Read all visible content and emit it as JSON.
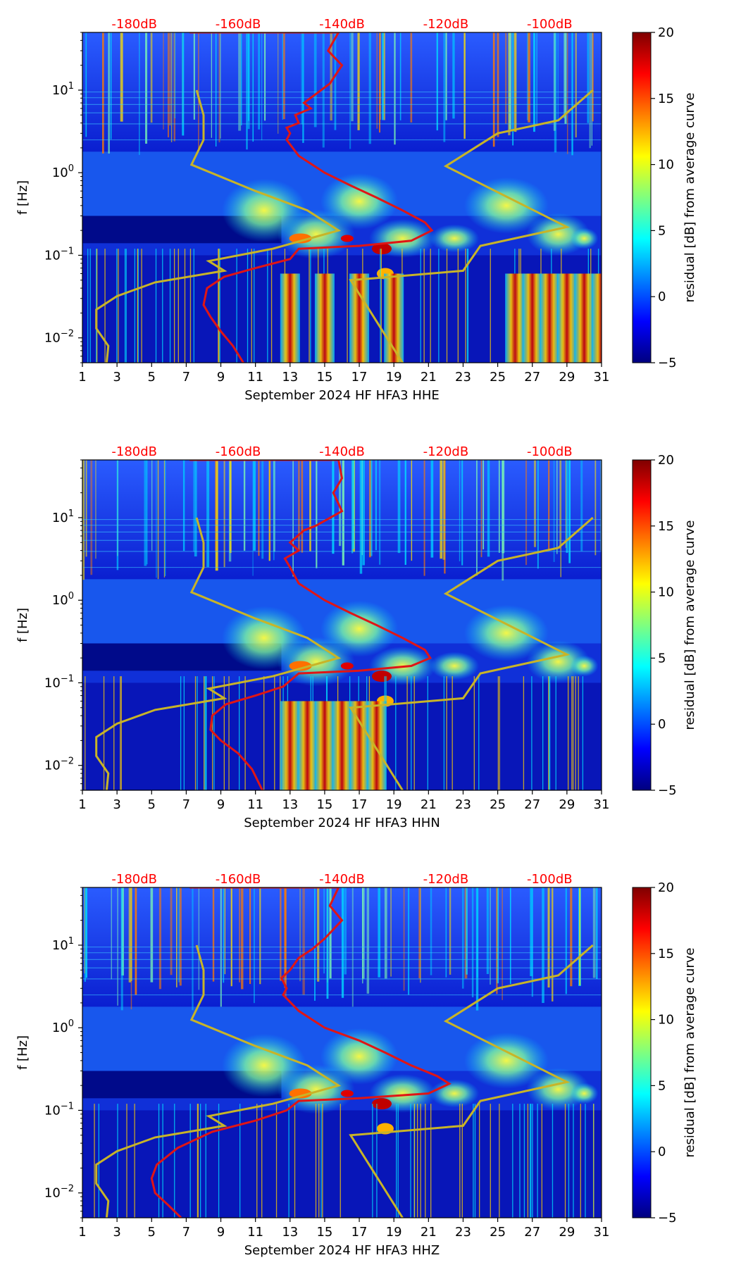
{
  "figure": {
    "month_label": "September 2024",
    "network": "HF",
    "station": "HFA3"
  },
  "colors": {
    "model_curve": "#c8b428",
    "median_curve": "#e01515",
    "top_axis_text": "#ff0000",
    "colormap": [
      "#00007f",
      "#0000ff",
      "#007fff",
      "#00ffff",
      "#7fff7f",
      "#ffff00",
      "#ff7f00",
      "#ff0000",
      "#7f0000"
    ]
  },
  "chart_data": [
    {
      "type": "heatmap",
      "channel": "HHE",
      "xlabel": "September 2024 HF HFA3  HHE",
      "ylabel": "f [Hz]",
      "x_range": [
        1,
        31
      ],
      "x_ticks": [
        "1",
        "3",
        "5",
        "7",
        "9",
        "11",
        "13",
        "15",
        "17",
        "19",
        "21",
        "23",
        "25",
        "27",
        "29",
        "31"
      ],
      "y_scale": "log",
      "y_range": [
        0.005,
        50
      ],
      "y_ticks": [
        {
          "value": 10,
          "base": "10",
          "exp": "1"
        },
        {
          "value": 1,
          "base": "10",
          "exp": "0"
        },
        {
          "value": 0.1,
          "base": "10",
          "exp": "−1"
        },
        {
          "value": 0.01,
          "base": "10",
          "exp": "−2"
        }
      ],
      "top_axis_labels": [
        "-180dB",
        "-160dB",
        "-140dB",
        "-120dB",
        "-100dB"
      ],
      "top_axis_positions": [
        4.0,
        10.0,
        16.0,
        22.0,
        28.0
      ],
      "colorbar": {
        "label": "residual [dB] from average curve",
        "range": [
          -5,
          20
        ],
        "ticks": [
          "20",
          "15",
          "10",
          "5",
          "0",
          "−5"
        ]
      },
      "median_curve": [
        [
          7.2,
          50
        ],
        [
          15.8,
          50
        ],
        [
          15.2,
          30
        ],
        [
          16,
          20
        ],
        [
          15.3,
          12
        ],
        [
          14.5,
          9
        ],
        [
          13.8,
          7
        ],
        [
          14.2,
          6
        ],
        [
          13.3,
          5
        ],
        [
          13.5,
          4
        ],
        [
          12.8,
          3.5
        ],
        [
          13,
          3
        ],
        [
          12.8,
          2.5
        ],
        [
          13.5,
          1.6
        ],
        [
          15,
          1
        ],
        [
          16.5,
          0.7
        ],
        [
          18,
          0.5
        ],
        [
          19.5,
          0.35
        ],
        [
          20.8,
          0.25
        ],
        [
          21.2,
          0.2
        ],
        [
          20,
          0.15
        ],
        [
          17,
          0.13
        ],
        [
          13.5,
          0.12
        ],
        [
          13,
          0.09
        ],
        [
          11,
          0.07
        ],
        [
          9.2,
          0.055
        ],
        [
          8.2,
          0.04
        ],
        [
          8,
          0.025
        ],
        [
          8.4,
          0.018
        ],
        [
          9,
          0.012
        ],
        [
          9.7,
          0.008
        ],
        [
          10.3,
          0.005
        ]
      ],
      "model_curve": [
        [
          7.6,
          10
        ],
        [
          8,
          5
        ],
        [
          8,
          2.5
        ],
        [
          7.3,
          1.25
        ],
        [
          11,
          0.6
        ],
        [
          14,
          0.35
        ],
        [
          15.8,
          0.2
        ],
        [
          12,
          0.12
        ],
        [
          8.3,
          0.085
        ],
        [
          9.2,
          0.065
        ],
        [
          5.2,
          0.047
        ],
        [
          3,
          0.032
        ],
        [
          1.8,
          0.022
        ],
        [
          1.8,
          0.013
        ],
        [
          2.5,
          0.008
        ],
        [
          2.4,
          0.005
        ]
      ],
      "model_curve_high": [
        [
          30.5,
          10
        ],
        [
          28.5,
          4.3
        ],
        [
          25,
          3
        ],
        [
          22,
          1.2
        ],
        [
          29,
          0.22
        ],
        [
          24,
          0.13
        ],
        [
          23,
          0.065
        ],
        [
          16.5,
          0.05
        ],
        [
          19.5,
          0.005
        ]
      ]
    },
    {
      "type": "heatmap",
      "channel": "HHN",
      "xlabel": "September 2024 HF HFA3  HHN",
      "ylabel": "f [Hz]",
      "x_range": [
        1,
        31
      ],
      "x_ticks": [
        "1",
        "3",
        "5",
        "7",
        "9",
        "11",
        "13",
        "15",
        "17",
        "19",
        "21",
        "23",
        "25",
        "27",
        "29",
        "31"
      ],
      "y_scale": "log",
      "y_range": [
        0.005,
        50
      ],
      "y_ticks": [
        {
          "value": 10,
          "base": "10",
          "exp": "1"
        },
        {
          "value": 1,
          "base": "10",
          "exp": "0"
        },
        {
          "value": 0.1,
          "base": "10",
          "exp": "−1"
        },
        {
          "value": 0.01,
          "base": "10",
          "exp": "−2"
        }
      ],
      "top_axis_labels": [
        "-180dB",
        "-160dB",
        "-140dB",
        "-120dB",
        "-100dB"
      ],
      "top_axis_positions": [
        4.0,
        10.0,
        16.0,
        22.0,
        28.0
      ],
      "colorbar": {
        "label": "residual [dB] from average curve",
        "range": [
          -5,
          20
        ],
        "ticks": [
          "20",
          "15",
          "10",
          "5",
          "0",
          "−5"
        ]
      },
      "median_curve": [
        [
          7.2,
          50
        ],
        [
          15.8,
          50
        ],
        [
          16,
          30
        ],
        [
          15.5,
          20
        ],
        [
          16,
          12
        ],
        [
          14.5,
          8
        ],
        [
          13.8,
          7
        ],
        [
          13,
          5
        ],
        [
          13.5,
          4
        ],
        [
          12.7,
          3.2
        ],
        [
          13,
          2.5
        ],
        [
          13.5,
          1.6
        ],
        [
          15,
          1
        ],
        [
          16.5,
          0.7
        ],
        [
          18,
          0.5
        ],
        [
          19.5,
          0.35
        ],
        [
          20.8,
          0.25
        ],
        [
          21.1,
          0.2
        ],
        [
          20,
          0.16
        ],
        [
          17,
          0.14
        ],
        [
          13.5,
          0.13
        ],
        [
          12.6,
          0.09
        ],
        [
          11,
          0.07
        ],
        [
          9.3,
          0.055
        ],
        [
          8.5,
          0.04
        ],
        [
          8.4,
          0.027
        ],
        [
          9,
          0.02
        ],
        [
          10,
          0.014
        ],
        [
          10.8,
          0.009
        ],
        [
          11.4,
          0.005
        ]
      ],
      "model_curve": [
        [
          7.6,
          10
        ],
        [
          8,
          5
        ],
        [
          8,
          2.5
        ],
        [
          7.3,
          1.25
        ],
        [
          11,
          0.6
        ],
        [
          14,
          0.35
        ],
        [
          15.8,
          0.2
        ],
        [
          12,
          0.12
        ],
        [
          8.3,
          0.085
        ],
        [
          9.2,
          0.065
        ],
        [
          5.2,
          0.047
        ],
        [
          3,
          0.032
        ],
        [
          1.8,
          0.022
        ],
        [
          1.8,
          0.013
        ],
        [
          2.5,
          0.008
        ],
        [
          2.4,
          0.005
        ]
      ],
      "model_curve_high": [
        [
          30.5,
          10
        ],
        [
          28.5,
          4.3
        ],
        [
          25,
          3
        ],
        [
          22,
          1.2
        ],
        [
          29,
          0.22
        ],
        [
          24,
          0.13
        ],
        [
          23,
          0.065
        ],
        [
          16.5,
          0.05
        ],
        [
          19.5,
          0.005
        ]
      ]
    },
    {
      "type": "heatmap",
      "channel": "HHZ",
      "xlabel": "September 2024 HF HFA3  HHZ",
      "ylabel": "f [Hz]",
      "x_range": [
        1,
        31
      ],
      "x_ticks": [
        "1",
        "3",
        "5",
        "7",
        "9",
        "11",
        "13",
        "15",
        "17",
        "19",
        "21",
        "23",
        "25",
        "27",
        "29",
        "31"
      ],
      "y_scale": "log",
      "y_range": [
        0.005,
        50
      ],
      "y_ticks": [
        {
          "value": 10,
          "base": "10",
          "exp": "1"
        },
        {
          "value": 1,
          "base": "10",
          "exp": "0"
        },
        {
          "value": 0.1,
          "base": "10",
          "exp": "−1"
        },
        {
          "value": 0.01,
          "base": "10",
          "exp": "−2"
        }
      ],
      "top_axis_labels": [
        "-180dB",
        "-160dB",
        "-140dB",
        "-120dB",
        "-100dB"
      ],
      "top_axis_positions": [
        4.0,
        10.0,
        16.0,
        22.0,
        28.0
      ],
      "colorbar": {
        "label": "residual [dB] from average curve",
        "range": [
          -5,
          20
        ],
        "ticks": [
          "20",
          "15",
          "10",
          "5",
          "0",
          "−5"
        ]
      },
      "median_curve": [
        [
          7.2,
          50
        ],
        [
          15.8,
          50
        ],
        [
          15.3,
          30
        ],
        [
          16,
          20
        ],
        [
          15,
          12
        ],
        [
          14.3,
          9
        ],
        [
          13.5,
          7
        ],
        [
          13,
          5
        ],
        [
          12.5,
          4
        ],
        [
          12.8,
          3
        ],
        [
          12.6,
          2.5
        ],
        [
          13.5,
          1.6
        ],
        [
          15,
          1
        ],
        [
          17,
          0.7
        ],
        [
          18.5,
          0.5
        ],
        [
          20,
          0.35
        ],
        [
          21.5,
          0.26
        ],
        [
          22.2,
          0.21
        ],
        [
          21,
          0.16
        ],
        [
          17,
          0.14
        ],
        [
          13.5,
          0.13
        ],
        [
          12.8,
          0.1
        ],
        [
          11,
          0.075
        ],
        [
          8.5,
          0.055
        ],
        [
          6.5,
          0.035
        ],
        [
          5.3,
          0.022
        ],
        [
          5,
          0.015
        ],
        [
          5.2,
          0.01
        ],
        [
          6,
          0.007
        ],
        [
          6.7,
          0.005
        ]
      ],
      "model_curve": [
        [
          7.6,
          10
        ],
        [
          8,
          5
        ],
        [
          8,
          2.5
        ],
        [
          7.3,
          1.25
        ],
        [
          11,
          0.6
        ],
        [
          14,
          0.35
        ],
        [
          15.8,
          0.2
        ],
        [
          12,
          0.12
        ],
        [
          8.3,
          0.085
        ],
        [
          9.2,
          0.065
        ],
        [
          5.2,
          0.047
        ],
        [
          3,
          0.032
        ],
        [
          1.8,
          0.022
        ],
        [
          1.8,
          0.013
        ],
        [
          2.5,
          0.008
        ],
        [
          2.4,
          0.005
        ]
      ],
      "model_curve_high": [
        [
          30.5,
          10
        ],
        [
          28.5,
          4.3
        ],
        [
          25,
          3
        ],
        [
          22,
          1.2
        ],
        [
          29,
          0.22
        ],
        [
          24,
          0.13
        ],
        [
          23,
          0.065
        ],
        [
          16.5,
          0.05
        ],
        [
          19.5,
          0.005
        ]
      ]
    }
  ]
}
